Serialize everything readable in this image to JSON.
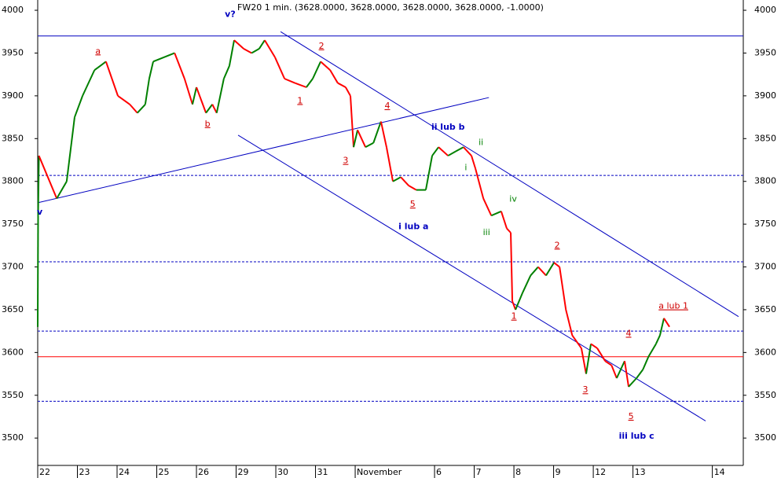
{
  "chart_data": {
    "type": "line",
    "title": "FW20 1 min. (3628.0000, 3628.0000, 3628.0000, 3628.0000, -1.0000)",
    "xlim": [
      0,
      17.78
    ],
    "ylim": [
      3468,
      4012
    ],
    "xticks": [
      {
        "value": 0,
        "label": "22"
      },
      {
        "value": 1,
        "label": "23"
      },
      {
        "value": 2,
        "label": "24"
      },
      {
        "value": 3,
        "label": "25"
      },
      {
        "value": 4,
        "label": "26"
      },
      {
        "value": 5,
        "label": "29"
      },
      {
        "value": 6,
        "label": "30"
      },
      {
        "value": 7,
        "label": "31"
      },
      {
        "value": 8,
        "label": "November"
      },
      {
        "value": 10,
        "label": "6"
      },
      {
        "value": 11,
        "label": "7"
      },
      {
        "value": 12,
        "label": "8"
      },
      {
        "value": 13,
        "label": "9"
      },
      {
        "value": 14,
        "label": "12"
      },
      {
        "value": 15,
        "label": "13"
      },
      {
        "value": 17,
        "label": "14"
      }
    ],
    "yticks": [
      3500,
      3550,
      3600,
      3650,
      3700,
      3750,
      3800,
      3850,
      3900,
      3950,
      4000
    ],
    "up_color": "#008000",
    "down_color": "#ff0000",
    "series": [
      {
        "name": "FW20",
        "x": [
          0,
          0.01,
          0.03,
          0.48,
          0.73,
          0.93,
          1.13,
          1.43,
          1.72,
          2.02,
          2.32,
          2.51,
          2.71,
          2.81,
          2.91,
          3.45,
          3.7,
          3.9,
          4.0,
          4.24,
          4.4,
          4.51,
          4.69,
          4.83,
          4.95,
          5.19,
          5.39,
          5.58,
          5.72,
          5.98,
          6.22,
          6.48,
          6.77,
          6.93,
          7.13,
          7.37,
          7.56,
          7.76,
          7.88,
          7.96,
          8.06,
          8.26,
          8.46,
          8.65,
          8.79,
          8.95,
          9.15,
          9.35,
          9.54,
          9.78,
          9.94,
          10.1,
          10.34,
          10.53,
          10.73,
          10.93,
          11.03,
          11.23,
          11.43,
          11.68,
          11.82,
          11.92,
          11.96,
          12.04,
          12.22,
          12.42,
          12.61,
          12.81,
          13.01,
          13.15,
          13.31,
          13.47,
          13.7,
          13.82,
          13.94,
          14.1,
          14.3,
          14.46,
          14.59,
          14.79,
          14.89,
          15.09,
          15.25,
          15.39,
          15.58,
          15.68,
          15.78,
          15.92
        ],
        "values": [
          3630,
          3760,
          3830,
          3780,
          3800,
          3875,
          3900,
          3930,
          3940,
          3900,
          3890,
          3880,
          3890,
          3920,
          3940,
          3950,
          3920,
          3890,
          3910,
          3880,
          3890,
          3880,
          3920,
          3935,
          3965,
          3955,
          3950,
          3955,
          3965,
          3945,
          3920,
          3915,
          3910,
          3920,
          3940,
          3930,
          3915,
          3910,
          3900,
          3840,
          3860,
          3840,
          3845,
          3870,
          3840,
          3800,
          3805,
          3795,
          3790,
          3790,
          3830,
          3840,
          3830,
          3835,
          3840,
          3830,
          3815,
          3780,
          3760,
          3765,
          3745,
          3740,
          3660,
          3650,
          3670,
          3690,
          3700,
          3690,
          3705,
          3700,
          3650,
          3620,
          3605,
          3575,
          3610,
          3605,
          3590,
          3585,
          3570,
          3590,
          3560,
          3570,
          3580,
          3595,
          3610,
          3620,
          3640,
          3630
        ]
      }
    ],
    "hlines": [
      {
        "value": 3970,
        "color": "#0000c0",
        "style": "solid"
      },
      {
        "value": 3807,
        "color": "#0000c0",
        "style": "dashed"
      },
      {
        "value": 3706,
        "color": "#0000c0",
        "style": "dashed"
      },
      {
        "value": 3625,
        "color": "#0000c0",
        "style": "dashed"
      },
      {
        "value": 3543,
        "color": "#0000c0",
        "style": "dashed"
      },
      {
        "value": 3595,
        "color": "#ff0000",
        "style": "solid"
      }
    ],
    "trendlines": [
      {
        "x": [
          0,
          11.37
        ],
        "y": [
          3775,
          3898
        ],
        "color": "#0000c0"
      },
      {
        "x": [
          6.12,
          17.66
        ],
        "y": [
          3975,
          3642
        ],
        "color": "#0000c0"
      },
      {
        "x": [
          5.05,
          16.83
        ],
        "y": [
          3854,
          3520
        ],
        "color": "#0000c0"
      }
    ],
    "annotations": [
      {
        "text": "v?",
        "x": 4.85,
        "y": 3995,
        "color": "#0000c0",
        "underline": false
      },
      {
        "text": "v",
        "x": 0.05,
        "y": 3764,
        "color": "#0000c0",
        "underline": false
      },
      {
        "text": "a",
        "x": 1.52,
        "y": 3952,
        "color": "#d00000",
        "underline": true
      },
      {
        "text": "b",
        "x": 4.28,
        "y": 3867,
        "color": "#d00000",
        "underline": true
      },
      {
        "text": "1",
        "x": 6.61,
        "y": 3894,
        "color": "#d00000",
        "underline": true
      },
      {
        "text": "2",
        "x": 7.15,
        "y": 3958,
        "color": "#d00000",
        "underline": true
      },
      {
        "text": "4",
        "x": 8.81,
        "y": 3888,
        "color": "#d00000",
        "underline": true
      },
      {
        "text": "3",
        "x": 7.76,
        "y": 3824,
        "color": "#d00000",
        "underline": true
      },
      {
        "text": "5",
        "x": 9.45,
        "y": 3773,
        "color": "#d00000",
        "underline": true
      },
      {
        "text": "ii lub b",
        "x": 10.34,
        "y": 3863,
        "color": "#0000c0",
        "underline": false
      },
      {
        "text": "ii",
        "x": 11.17,
        "y": 3845,
        "color": "#008000",
        "underline": false
      },
      {
        "text": "i",
        "x": 10.79,
        "y": 3816,
        "color": "#008000",
        "underline": false
      },
      {
        "text": "iv",
        "x": 11.98,
        "y": 3779,
        "color": "#008000",
        "underline": false
      },
      {
        "text": "iii",
        "x": 11.31,
        "y": 3740,
        "color": "#008000",
        "underline": false
      },
      {
        "text": "i lub a",
        "x": 9.47,
        "y": 3747,
        "color": "#0000c0",
        "underline": false
      },
      {
        "text": "1",
        "x": 12.0,
        "y": 3642,
        "color": "#d00000",
        "underline": true
      },
      {
        "text": "2",
        "x": 13.09,
        "y": 3725,
        "color": "#d00000",
        "underline": true
      },
      {
        "text": "4",
        "x": 14.89,
        "y": 3622,
        "color": "#d00000",
        "underline": true
      },
      {
        "text": "3",
        "x": 13.8,
        "y": 3556,
        "color": "#d00000",
        "underline": true
      },
      {
        "text": "5",
        "x": 14.95,
        "y": 3525,
        "color": "#d00000",
        "underline": true
      },
      {
        "text": "iii lub c",
        "x": 15.09,
        "y": 3502,
        "color": "#0000c0",
        "underline": false
      },
      {
        "text": "a lub 1",
        "x": 16.02,
        "y": 3654,
        "color": "#d00000",
        "underline": true
      }
    ]
  }
}
